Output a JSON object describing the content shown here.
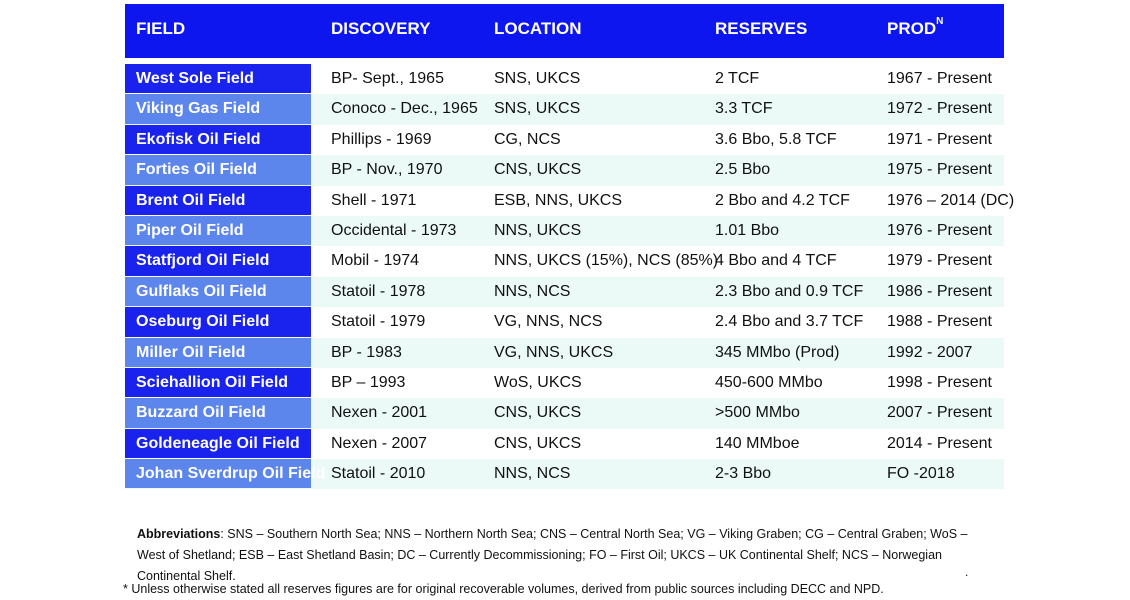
{
  "headers": {
    "field": "FIELD",
    "discovery": "DISCOVERY",
    "location": "LOCATION",
    "reserves": "RESERVES",
    "prod": "PROD",
    "prod_sup": "N"
  },
  "rows": [
    {
      "name": "West Sole Field",
      "discovery": "BP- Sept., 1965",
      "location": "SNS, UKCS",
      "reserves": "2 TCF",
      "prod": "1967 - Present"
    },
    {
      "name": "Viking Gas Field",
      "discovery": "Conoco - Dec., 1965",
      "location": "SNS, UKCS",
      "reserves": "3.3 TCF",
      "prod": "1972 - Present"
    },
    {
      "name": "Ekofisk Oil Field",
      "discovery": "Phillips - 1969",
      "location": "CG, NCS",
      "reserves": "3.6 Bbo, 5.8 TCF",
      "prod": "1971 - Present"
    },
    {
      "name": "Forties Oil Field",
      "discovery": "BP - Nov., 1970",
      "location": "CNS, UKCS",
      "reserves": "2.5 Bbo",
      "prod": "1975 - Present"
    },
    {
      "name": "Brent Oil Field",
      "discovery": "Shell - 1971",
      "location": "ESB, NNS, UKCS",
      "reserves": "2 Bbo and 4.2 TCF",
      "prod": "1976 – 2014 (DC)"
    },
    {
      "name": "Piper Oil Field",
      "discovery": "Occidental - 1973",
      "location": "NNS, UKCS",
      "reserves": "1.01 Bbo",
      "prod": "1976 - Present"
    },
    {
      "name": "Statfjord Oil Field",
      "discovery": "Mobil - 1974",
      "location": "NNS, UKCS (15%), NCS (85%)",
      "reserves": "4 Bbo and 4 TCF",
      "prod": "1979 - Present"
    },
    {
      "name": "Gulflaks Oil Field",
      "discovery": "Statoil - 1978",
      "location": "NNS, NCS",
      "reserves": "2.3 Bbo and 0.9 TCF",
      "prod": "1986 - Present"
    },
    {
      "name": "Oseburg Oil Field",
      "discovery": "Statoil - 1979",
      "location": "VG, NNS, NCS",
      "reserves": "2.4 Bbo and 3.7 TCF",
      "prod": "1988 - Present"
    },
    {
      "name": "Miller Oil Field",
      "discovery": "BP - 1983",
      "location": "VG, NNS, UKCS",
      "reserves": "345 MMbo (Prod)",
      "prod": "1992 - 2007"
    },
    {
      "name": "Sciehallion Oil Field",
      "discovery": "BP – 1993",
      "location": "WoS, UKCS",
      "reserves": "450-600 MMbo",
      "prod": "1998 - Present"
    },
    {
      "name": "Buzzard Oil Field",
      "discovery": "Nexen - 2001",
      "location": "CNS, UKCS",
      "reserves": ">500 MMbo",
      "prod": "2007 - Present"
    },
    {
      "name": "Goldeneagle Oil Field",
      "discovery": "Nexen - 2007",
      "location": "CNS, UKCS",
      "reserves": "140 MMboe",
      "prod": "2014 - Present"
    },
    {
      "name": "Johan Sverdrup Oil Field",
      "discovery": "Statoil - 2010",
      "location": "NNS, NCS",
      "reserves": "2-3 Bbo",
      "prod": "FO -2018"
    }
  ],
  "notes": {
    "abbrev_label": "Abbreviations",
    "abbrev_text": ": SNS – Southern North Sea; NNS – Northern North Sea; CNS – Central North Sea; VG – Viking Graben; CG – Central Graben; WoS – West of Shetland; ESB – East Shetland Basin; DC – Currently Decommissioning; FO – First Oil; UKCS – UK Continental Shelf; NCS – Norwegian Continental Shelf.",
    "dot": ".",
    "footnote": "* Unless otherwise stated all reserves figures are for original recoverable volumes, derived from public sources including DECC and NPD."
  },
  "colors": {
    "header_bg": "#0d16ee",
    "name_cell_dark": "#1a22ee",
    "name_cell_light": "#5d86ec",
    "alt_row_bg": "#ebfaf7"
  }
}
